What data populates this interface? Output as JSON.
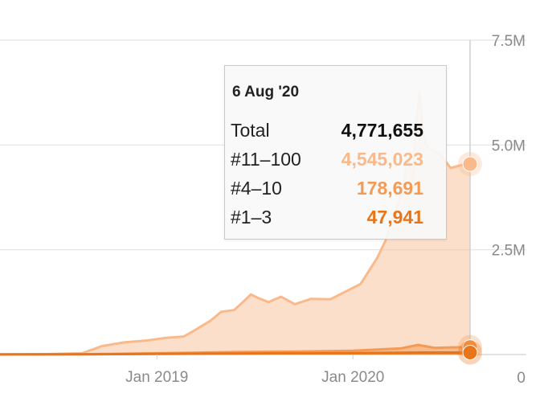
{
  "chart_data": {
    "type": "area",
    "title": "",
    "xlabel": "",
    "ylabel": "",
    "y_axis_position": "right",
    "ylim": [
      0,
      7500000
    ],
    "y_ticks": [
      {
        "value": 0,
        "label": "0"
      },
      {
        "value": 2500000,
        "label": "2.5M"
      },
      {
        "value": 5000000,
        "label": "5.0M"
      },
      {
        "value": 7500000,
        "label": "7.5M"
      }
    ],
    "x_ticks": [
      {
        "value": "2019-01-01",
        "label": "Jan 2019"
      },
      {
        "value": "2020-01-01",
        "label": "Jan 2020"
      }
    ],
    "xlim": [
      "2018-03-15",
      "2020-08-06"
    ],
    "grid": true,
    "series": [
      {
        "name": "#11–100",
        "color": "#f9b98a",
        "points": [
          [
            "2018-03-15",
            5000
          ],
          [
            "2018-06-01",
            8000
          ],
          [
            "2018-08-15",
            30000
          ],
          [
            "2018-09-20",
            200000
          ],
          [
            "2018-11-01",
            290000
          ],
          [
            "2018-12-10",
            330000
          ],
          [
            "2019-01-20",
            400000
          ],
          [
            "2019-02-20",
            430000
          ],
          [
            "2019-03-10",
            560000
          ],
          [
            "2019-04-10",
            800000
          ],
          [
            "2019-05-01",
            1020000
          ],
          [
            "2019-05-25",
            1060000
          ],
          [
            "2019-06-10",
            1250000
          ],
          [
            "2019-06-25",
            1430000
          ],
          [
            "2019-07-10",
            1340000
          ],
          [
            "2019-07-28",
            1250000
          ],
          [
            "2019-08-20",
            1380000
          ],
          [
            "2019-09-15",
            1200000
          ],
          [
            "2019-10-15",
            1330000
          ],
          [
            "2019-11-20",
            1320000
          ],
          [
            "2019-12-15",
            1480000
          ],
          [
            "2020-01-15",
            1680000
          ],
          [
            "2020-02-15",
            2300000
          ],
          [
            "2020-03-01",
            2700000
          ],
          [
            "2020-03-20",
            3400000
          ],
          [
            "2020-04-01",
            3900000
          ],
          [
            "2020-04-12",
            4650000
          ],
          [
            "2020-04-22",
            4200000
          ],
          [
            "2020-04-28",
            5600000
          ],
          [
            "2020-05-04",
            6250000
          ],
          [
            "2020-05-10",
            5300000
          ],
          [
            "2020-05-20",
            4900000
          ],
          [
            "2020-06-10",
            4800000
          ],
          [
            "2020-07-01",
            4450000
          ],
          [
            "2020-07-20",
            4520000
          ],
          [
            "2020-08-06",
            4545023
          ]
        ]
      },
      {
        "name": "#4–10",
        "color": "#f39a55",
        "points": [
          [
            "2018-03-15",
            2000
          ],
          [
            "2018-09-01",
            10000
          ],
          [
            "2019-01-01",
            30000
          ],
          [
            "2019-06-01",
            60000
          ],
          [
            "2019-09-01",
            70000
          ],
          [
            "2020-01-01",
            90000
          ],
          [
            "2020-04-01",
            150000
          ],
          [
            "2020-05-01",
            230000
          ],
          [
            "2020-06-01",
            160000
          ],
          [
            "2020-07-01",
            170000
          ],
          [
            "2020-08-06",
            178691
          ]
        ]
      },
      {
        "name": "#1–3",
        "color": "#e8751a",
        "points": [
          [
            "2018-03-15",
            1000
          ],
          [
            "2018-09-01",
            5000
          ],
          [
            "2019-01-01",
            15000
          ],
          [
            "2019-06-01",
            25000
          ],
          [
            "2019-09-01",
            30000
          ],
          [
            "2020-01-01",
            35000
          ],
          [
            "2020-04-01",
            42000
          ],
          [
            "2020-05-01",
            48000
          ],
          [
            "2020-08-06",
            47941
          ]
        ]
      }
    ],
    "tooltip": {
      "date": "6 Aug '20",
      "rows": [
        {
          "label": "Total",
          "value": "4,771,655",
          "color": "#111111"
        },
        {
          "label": "#11–100",
          "value": "4,545,023",
          "color": "#f9b98a"
        },
        {
          "label": "#4–10",
          "value": "178,691",
          "color": "#f39a55"
        },
        {
          "label": "#1–3",
          "value": "47,941",
          "color": "#e8751a"
        }
      ]
    }
  }
}
